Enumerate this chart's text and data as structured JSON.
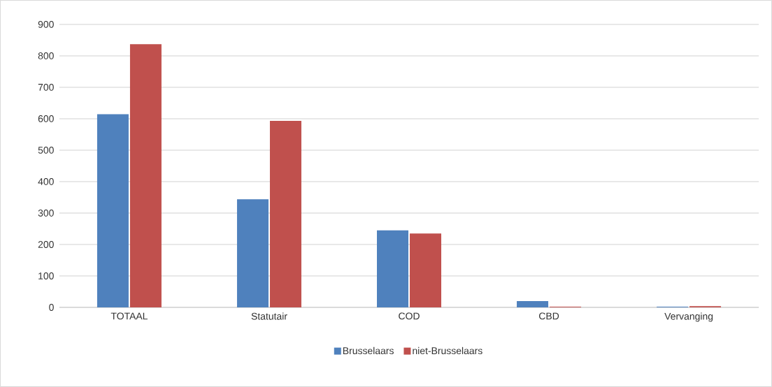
{
  "chart_data": {
    "type": "bar",
    "categories": [
      "TOTAAL",
      "Statutair",
      "COD",
      "CBD",
      "Vervanging"
    ],
    "series": [
      {
        "name": "Brusselaars",
        "color": "#4f81bd",
        "values": [
          614,
          344,
          245,
          20,
          2
        ]
      },
      {
        "name": "niet-Brusselaars",
        "color": "#c0504d",
        "values": [
          837,
          593,
          235,
          2,
          4
        ]
      }
    ],
    "ylim": [
      0,
      900
    ],
    "yticks": [
      0,
      100,
      200,
      300,
      400,
      500,
      600,
      700,
      800,
      900
    ],
    "grid": "y",
    "legend": "bottom"
  }
}
